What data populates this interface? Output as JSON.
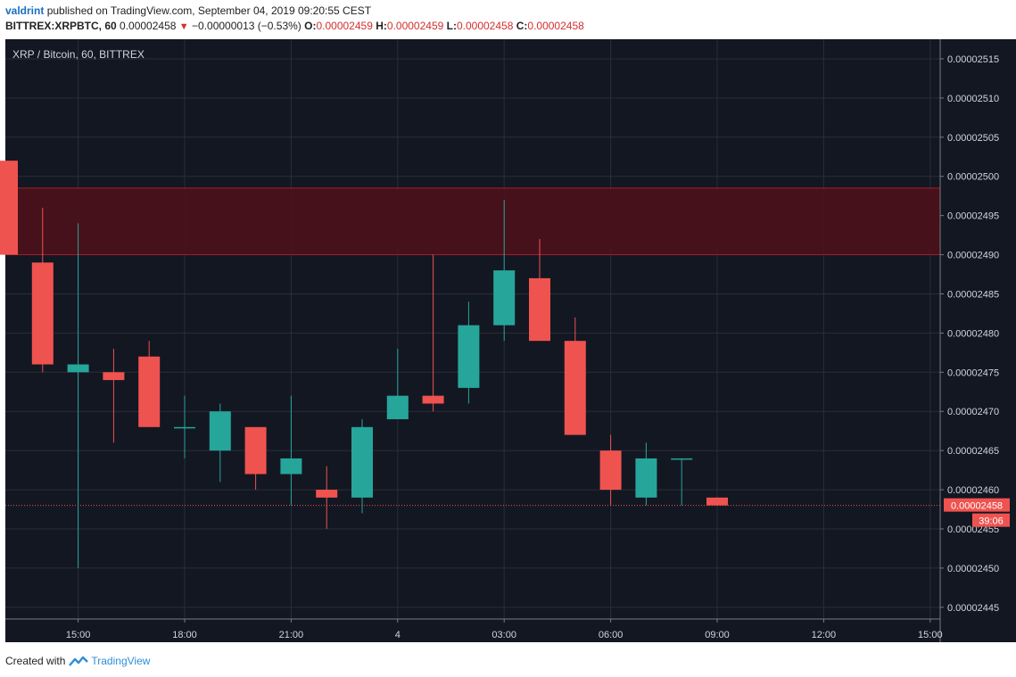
{
  "header": {
    "user": "valdrint",
    "published_text": "published on TradingView.com, September 04, 2019 09:20:55 CEST",
    "symbol": "BITTREX:XRPBTC, 60",
    "last": "0.00002458",
    "change": "−0.00000013 (−0.53%)",
    "o_label": "O:",
    "o_value": "0.00002459",
    "h_label": "H:",
    "h_value": "0.00002459",
    "l_label": "L:",
    "l_value": "0.00002458",
    "c_label": "C:",
    "c_value": "0.00002458"
  },
  "footer": {
    "created_with": "Created with",
    "brand": "TradingView"
  },
  "colors": {
    "background": "#131722",
    "grid": "#2a2e39",
    "up": "#26a69a",
    "down": "#ef5350",
    "zone": "#4d1119"
  },
  "chart_data": {
    "type": "candlestick",
    "title": "XRP / Bitcoin, 60, BITTREX",
    "ylim": [
      2.4435e-05,
      2.5175e-05
    ],
    "y_ticks": [
      "0.00002445",
      "0.00002450",
      "0.00002455",
      "0.00002460",
      "0.00002465",
      "0.00002470",
      "0.00002475",
      "0.00002480",
      "0.00002485",
      "0.00002490",
      "0.00002495",
      "0.00002500",
      "0.00002505",
      "0.00002510",
      "0.00002515"
    ],
    "x_ticks": [
      "15:00",
      "18:00",
      "21:00",
      "4",
      "03:00",
      "06:00",
      "09:00",
      "12:00",
      "15:00"
    ],
    "x_tick_index": [
      2,
      5,
      8,
      11,
      14,
      17,
      20,
      23,
      26
    ],
    "resistance_zone": [
      2.49e-05,
      2.4985e-05
    ],
    "last_price": "0.00002458",
    "countdown": "39:06",
    "candles": [
      {
        "o": 2.502e-05,
        "h": 2.502e-05,
        "l": 2.49e-05,
        "c": 2.49e-05
      },
      {
        "o": 2.489e-05,
        "h": 2.496e-05,
        "l": 2.475e-05,
        "c": 2.476e-05
      },
      {
        "o": 2.475e-05,
        "h": 2.494e-05,
        "l": 2.45e-05,
        "c": 2.476e-05
      },
      {
        "o": 2.475e-05,
        "h": 2.478e-05,
        "l": 2.466e-05,
        "c": 2.474e-05
      },
      {
        "o": 2.477e-05,
        "h": 2.479e-05,
        "l": 2.468e-05,
        "c": 2.468e-05
      },
      {
        "o": 2.468e-05,
        "h": 2.472e-05,
        "l": 2.464e-05,
        "c": 2.468e-05
      },
      {
        "o": 2.465e-05,
        "h": 2.471e-05,
        "l": 2.461e-05,
        "c": 2.47e-05
      },
      {
        "o": 2.468e-05,
        "h": 2.468e-05,
        "l": 2.46e-05,
        "c": 2.462e-05
      },
      {
        "o": 2.462e-05,
        "h": 2.472e-05,
        "l": 2.458e-05,
        "c": 2.464e-05
      },
      {
        "o": 2.46e-05,
        "h": 2.463e-05,
        "l": 2.455e-05,
        "c": 2.459e-05
      },
      {
        "o": 2.459e-05,
        "h": 2.469e-05,
        "l": 2.457e-05,
        "c": 2.468e-05
      },
      {
        "o": 2.469e-05,
        "h": 2.478e-05,
        "l": 2.469e-05,
        "c": 2.472e-05
      },
      {
        "o": 2.472e-05,
        "h": 2.49e-05,
        "l": 2.47e-05,
        "c": 2.471e-05
      },
      {
        "o": 2.473e-05,
        "h": 2.484e-05,
        "l": 2.471e-05,
        "c": 2.481e-05
      },
      {
        "o": 2.481e-05,
        "h": 2.497e-05,
        "l": 2.479e-05,
        "c": 2.488e-05
      },
      {
        "o": 2.487e-05,
        "h": 2.492e-05,
        "l": 2.479e-05,
        "c": 2.479e-05
      },
      {
        "o": 2.479e-05,
        "h": 2.482e-05,
        "l": 2.467e-05,
        "c": 2.467e-05
      },
      {
        "o": 2.465e-05,
        "h": 2.467e-05,
        "l": 2.458e-05,
        "c": 2.46e-05
      },
      {
        "o": 2.459e-05,
        "h": 2.466e-05,
        "l": 2.458e-05,
        "c": 2.464e-05
      },
      {
        "o": 2.464e-05,
        "h": 2.464e-05,
        "l": 2.458e-05,
        "c": 2.464e-05
      },
      {
        "o": 2.459e-05,
        "h": 2.459e-05,
        "l": 2.458e-05,
        "c": 2.458e-05
      }
    ]
  }
}
